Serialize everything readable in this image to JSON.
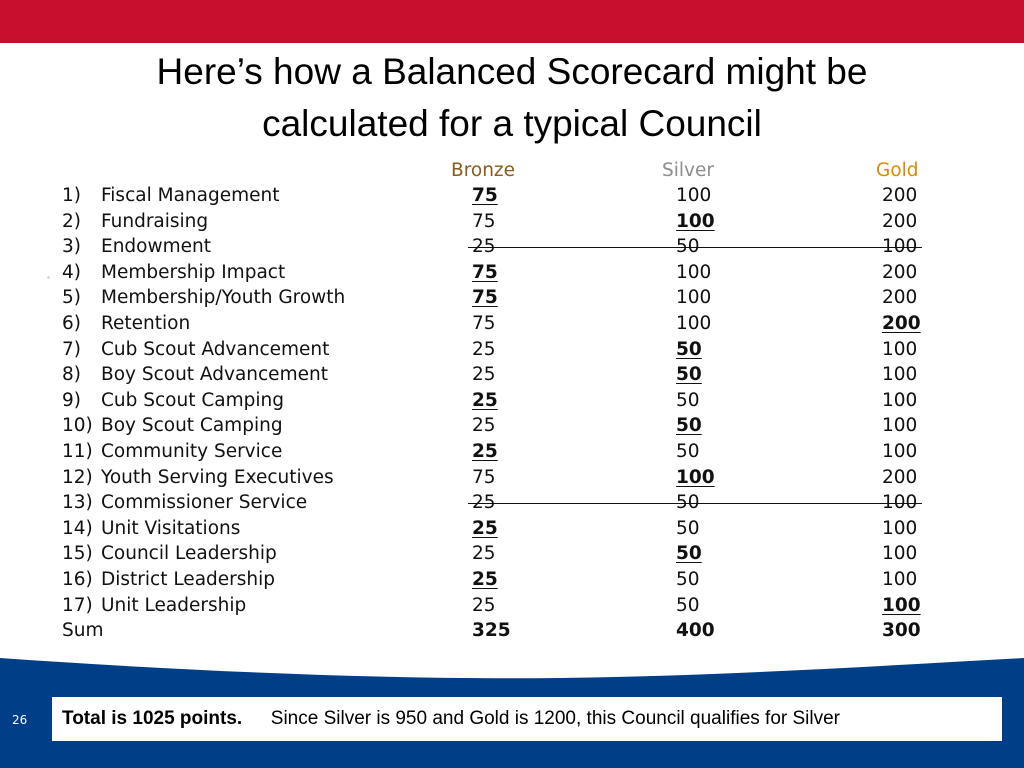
{
  "title": {
    "line1": "Here’s how a Balanced Scorecard might be",
    "line2": "calculated for a typical Council"
  },
  "headers": {
    "bronze": "Bronze",
    "silver": "Silver",
    "gold": "Gold"
  },
  "colors": {
    "top_bar": "#c8102e",
    "bottom_band": "#003f87",
    "bronze_header": "#8a5a1a",
    "silver_header": "#8c8c8c",
    "gold_header": "#e08a00"
  },
  "rows": [
    {
      "num": "1)",
      "label": "Fiscal Management",
      "bronze": "75",
      "silver": "100",
      "gold": "200",
      "selected": "bronze",
      "struck": false
    },
    {
      "num": "2)",
      "label": "Fundraising",
      "bronze": "75",
      "silver": "100",
      "gold": "200",
      "selected": "silver",
      "struck": false
    },
    {
      "num": "3)",
      "label": "Endowment",
      "bronze": "25",
      "silver": "50",
      "gold": "100",
      "selected": "",
      "struck": true
    },
    {
      "num": "4)",
      "label": "Membership Impact",
      "bronze": "75",
      "silver": "100",
      "gold": "200",
      "selected": "bronze",
      "struck": false
    },
    {
      "num": "5)",
      "label": "Membership/Youth Growth",
      "bronze": "75",
      "silver": "100",
      "gold": "200",
      "selected": "bronze",
      "struck": false
    },
    {
      "num": "6)",
      "label": "Retention",
      "bronze": "75",
      "silver": "100",
      "gold": "200",
      "selected": "gold",
      "struck": false
    },
    {
      "num": "7)",
      "label": "Cub Scout Advancement",
      "bronze": "25",
      "silver": "50",
      "gold": "100",
      "selected": "silver",
      "struck": false
    },
    {
      "num": "8)",
      "label": "Boy Scout Advancement",
      "bronze": "25",
      "silver": "50",
      "gold": "100",
      "selected": "silver",
      "struck": false
    },
    {
      "num": "9)",
      "label": "Cub Scout Camping",
      "bronze": "25",
      "silver": "50",
      "gold": "100",
      "selected": "bronze",
      "struck": false
    },
    {
      "num": "10)",
      "label": "Boy Scout Camping",
      "bronze": "25",
      "silver": "50",
      "gold": "100",
      "selected": "silver",
      "struck": false
    },
    {
      "num": "11)",
      "label": "Community Service",
      "bronze": "25",
      "silver": "50",
      "gold": "100",
      "selected": "bronze",
      "struck": false
    },
    {
      "num": "12)",
      "label": "Youth Serving Executives",
      "bronze": "75",
      "silver": "100",
      "gold": "200",
      "selected": "silver",
      "struck": false
    },
    {
      "num": "13)",
      "label": "Commissioner Service",
      "bronze": "25",
      "silver": "50",
      "gold": "100",
      "selected": "",
      "struck": true
    },
    {
      "num": "14)",
      "label": "Unit Visitations",
      "bronze": "25",
      "silver": "50",
      "gold": "100",
      "selected": "bronze",
      "struck": false
    },
    {
      "num": "15)",
      "label": "Council Leadership",
      "bronze": "25",
      "silver": "50",
      "gold": "100",
      "selected": "silver",
      "struck": false
    },
    {
      "num": "16)",
      "label": "District Leadership",
      "bronze": "25",
      "silver": "50",
      "gold": "100",
      "selected": "bronze",
      "struck": false
    },
    {
      "num": "17)",
      "label": "Unit Leadership",
      "bronze": "25",
      "silver": "50",
      "gold": "100",
      "selected": "gold",
      "struck": false
    }
  ],
  "sum": {
    "label": "Sum",
    "bronze": "325",
    "silver": "400",
    "gold": "300"
  },
  "footer": {
    "slide_number": "26",
    "total_bold": "Total is  1025 points.",
    "total_rest": "Since Silver is 950 and Gold is 1200,  this Council qualifies for Silver"
  }
}
